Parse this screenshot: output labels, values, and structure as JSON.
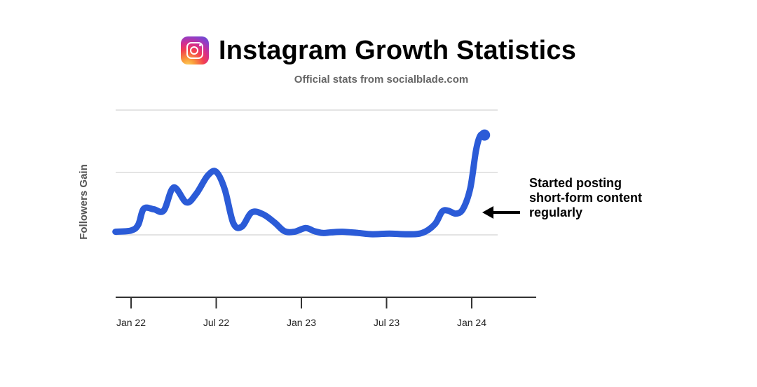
{
  "header": {
    "icon": "instagram-logo-icon",
    "title": "Instagram Growth Statistics",
    "subtitle": "Official stats from socialblade.com"
  },
  "chart_data": {
    "type": "line",
    "title": "Instagram Growth Statistics",
    "subtitle": "Official stats from socialblade.com",
    "xlabel": "",
    "ylabel": "Followers Gain",
    "x_unit": "months since Jan 2022",
    "x_tick_labels": [
      "Jan 22",
      "Jul 22",
      "Jan 23",
      "Jul 23",
      "Jan 24"
    ],
    "x_tick_values": [
      0,
      6,
      12,
      18,
      24
    ],
    "xlim": [
      -1.1,
      28.6
    ],
    "ylim": [
      -1,
      2
    ],
    "y_gridlines": [
      0,
      1,
      2
    ],
    "grid": true,
    "legend": "none",
    "series": [
      {
        "name": "Followers Gain",
        "color": "#2b5bd7",
        "x": [
          -1.1,
          0.0,
          0.5,
          0.9,
          1.6,
          2.3,
          3.0,
          3.9,
          4.6,
          5.4,
          6.0,
          6.6,
          7.2,
          7.8,
          8.5,
          9.3,
          10.1,
          10.8,
          11.5,
          12.3,
          12.9,
          13.5,
          14.1,
          14.9,
          16.0,
          17.0,
          18.2,
          19.4,
          20.5,
          21.4,
          21.9,
          22.3,
          22.9,
          23.4,
          23.9,
          24.3,
          24.6,
          24.9
        ],
        "y": [
          0.05,
          0.07,
          0.16,
          0.42,
          0.41,
          0.39,
          0.76,
          0.52,
          0.66,
          0.95,
          1.01,
          0.73,
          0.19,
          0.13,
          0.36,
          0.33,
          0.2,
          0.06,
          0.05,
          0.11,
          0.06,
          0.03,
          0.04,
          0.05,
          0.03,
          0.01,
          0.02,
          0.01,
          0.03,
          0.17,
          0.37,
          0.39,
          0.34,
          0.42,
          0.75,
          1.35,
          1.59,
          1.6
        ]
      }
    ],
    "end_marker": true,
    "annotation": {
      "lines": [
        "Started posting",
        "short-form content",
        "regularly"
      ],
      "arrow": "left-arrow-icon",
      "points_to_x": 24.3
    }
  }
}
